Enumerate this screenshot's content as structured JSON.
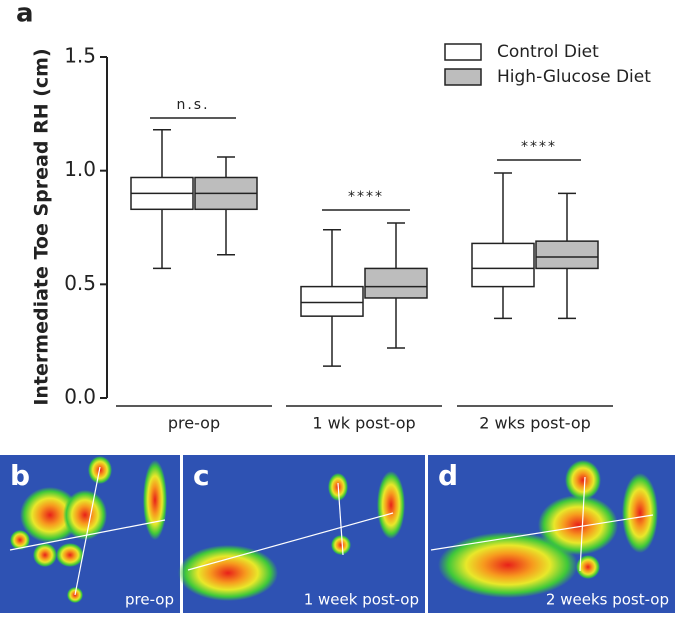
{
  "chart_data": {
    "type": "box",
    "panel_label": "a",
    "y_label": "Intermediate Toe Spread RH (cm)",
    "categories": [
      "pre-op",
      "1 wk post-op",
      "2 wks post-op"
    ],
    "series": [
      {
        "name": "Control Diet",
        "color": "#ffffff",
        "values": [
          [
            0.57,
            0.83,
            0.9,
            0.97,
            1.18
          ],
          [
            0.14,
            0.36,
            0.42,
            0.49,
            0.74
          ],
          [
            0.35,
            0.49,
            0.57,
            0.68,
            0.99
          ]
        ]
      },
      {
        "name": "High-Glucose Diet",
        "color": "#bdbdbd",
        "values": [
          [
            0.63,
            0.83,
            0.9,
            0.97,
            1.06
          ],
          [
            0.22,
            0.44,
            0.49,
            0.57,
            0.77
          ],
          [
            0.35,
            0.57,
            0.62,
            0.69,
            0.9
          ]
        ]
      }
    ],
    "ylim": [
      0,
      1.5
    ],
    "yticks": [
      {
        "value": 0,
        "label": "0.0"
      },
      {
        "value": 0.5,
        "label": "0.5"
      },
      {
        "value": 1,
        "label": "1.0"
      },
      {
        "value": 1.5,
        "label": "1.5"
      }
    ],
    "annotations": [
      "n.s.",
      "****",
      "****"
    ]
  },
  "images": [
    {
      "label": "b",
      "caption": "pre-op"
    },
    {
      "label": "c",
      "caption": "1 week post-op"
    },
    {
      "label": "d",
      "caption": "2 weeks post-op"
    }
  ]
}
